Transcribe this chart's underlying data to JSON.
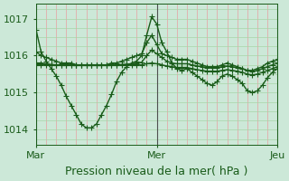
{
  "title": "",
  "xlabel": "Pression niveau de la mer( hPa )",
  "ylim": [
    1013.6,
    1017.4
  ],
  "xlim": [
    0,
    96
  ],
  "yticks": [
    1014,
    1015,
    1016,
    1017
  ],
  "xtick_positions": [
    0,
    48,
    96
  ],
  "xtick_labels": [
    "Mar",
    "Mer",
    "Jeu"
  ],
  "bg_color": "#cce8d8",
  "plot_bg": "#cce8d8",
  "line_color": "#1a5c1a",
  "grid_color_v": "#e8a0a0",
  "grid_color_h": "#a8d4a8",
  "vline_color": "#505050",
  "series": [
    [
      1016.7,
      1016.1,
      1015.85,
      1015.65,
      1015.45,
      1015.2,
      1014.9,
      1014.65,
      1014.4,
      1014.15,
      1014.05,
      1014.05,
      1014.15,
      1014.4,
      1014.65,
      1014.95,
      1015.3,
      1015.55,
      1015.7,
      1015.8,
      1015.85,
      1016.0,
      1016.55,
      1017.05,
      1016.85,
      1016.35,
      1016.1,
      1015.8,
      1015.65,
      1015.6,
      1015.65,
      1015.55,
      1015.45,
      1015.35,
      1015.25,
      1015.2,
      1015.3,
      1015.45,
      1015.5,
      1015.45,
      1015.35,
      1015.25,
      1015.05,
      1015.0,
      1015.05,
      1015.2,
      1015.4,
      1015.55,
      1015.65
    ],
    [
      1016.1,
      1016.0,
      1015.95,
      1015.9,
      1015.85,
      1015.8,
      1015.8,
      1015.8,
      1015.75,
      1015.75,
      1015.75,
      1015.75,
      1015.75,
      1015.75,
      1015.75,
      1015.8,
      1015.8,
      1015.85,
      1015.9,
      1015.95,
      1016.0,
      1016.05,
      1016.35,
      1016.55,
      1016.3,
      1016.05,
      1016.0,
      1015.95,
      1015.9,
      1015.9,
      1015.9,
      1015.85,
      1015.8,
      1015.75,
      1015.7,
      1015.7,
      1015.7,
      1015.75,
      1015.8,
      1015.75,
      1015.7,
      1015.65,
      1015.6,
      1015.6,
      1015.65,
      1015.7,
      1015.8,
      1015.85,
      1015.9
    ],
    [
      1015.8,
      1015.8,
      1015.78,
      1015.76,
      1015.75,
      1015.75,
      1015.75,
      1015.75,
      1015.75,
      1015.75,
      1015.75,
      1015.75,
      1015.75,
      1015.75,
      1015.75,
      1015.75,
      1015.75,
      1015.76,
      1015.77,
      1015.78,
      1015.8,
      1015.82,
      1016.0,
      1016.15,
      1016.05,
      1015.95,
      1015.85,
      1015.8,
      1015.78,
      1015.78,
      1015.78,
      1015.75,
      1015.72,
      1015.7,
      1015.68,
      1015.68,
      1015.68,
      1015.7,
      1015.72,
      1015.7,
      1015.68,
      1015.65,
      1015.6,
      1015.58,
      1015.6,
      1015.65,
      1015.7,
      1015.75,
      1015.8
    ],
    [
      1015.75,
      1015.75,
      1015.75,
      1015.75,
      1015.75,
      1015.75,
      1015.75,
      1015.75,
      1015.75,
      1015.75,
      1015.75,
      1015.75,
      1015.75,
      1015.75,
      1015.75,
      1015.75,
      1015.75,
      1015.75,
      1015.75,
      1015.75,
      1015.75,
      1015.75,
      1015.78,
      1015.8,
      1015.78,
      1015.75,
      1015.72,
      1015.7,
      1015.68,
      1015.68,
      1015.68,
      1015.65,
      1015.62,
      1015.6,
      1015.58,
      1015.58,
      1015.58,
      1015.6,
      1015.62,
      1015.6,
      1015.58,
      1015.55,
      1015.5,
      1015.48,
      1015.5,
      1015.55,
      1015.6,
      1015.65,
      1015.7
    ]
  ],
  "marker": "+",
  "markersize": 4,
  "linewidth": 1.0,
  "font_color": "#1a5c1a",
  "font_size_label": 9,
  "font_size_tick": 8
}
